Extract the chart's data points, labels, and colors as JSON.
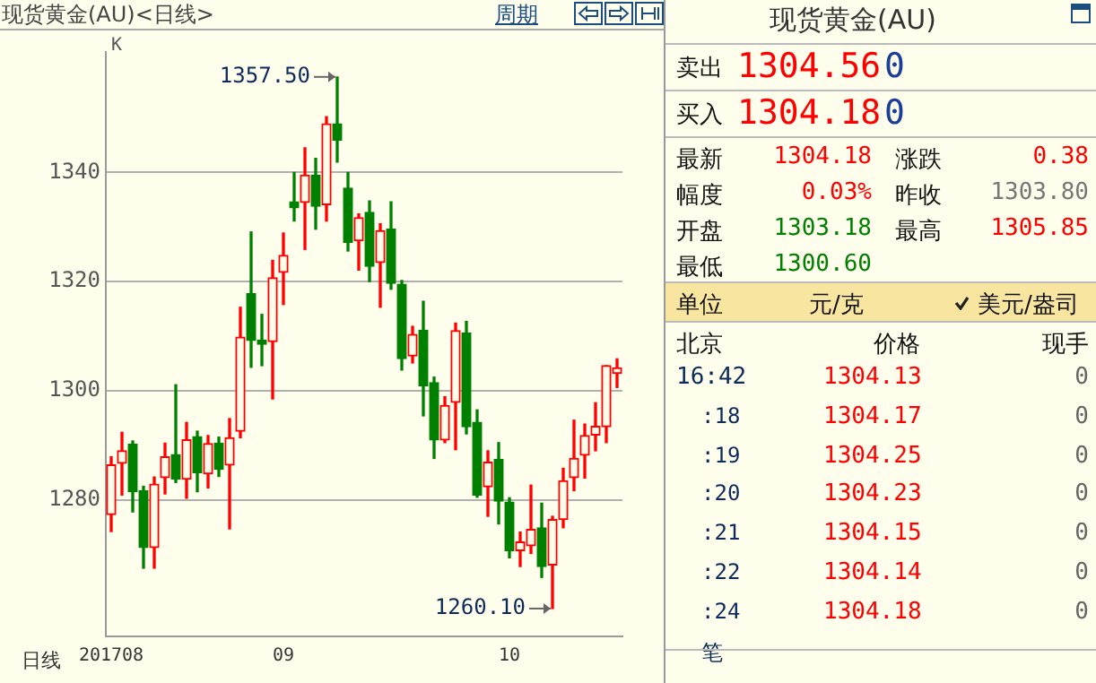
{
  "chart_data": [
    {
      "type": "candlestick",
      "title": "现货黄金(AU)<日线>",
      "categories": [
        "201708",
        null,
        null,
        null,
        null,
        null,
        null,
        null,
        null,
        null,
        null,
        null,
        null,
        null,
        null,
        null,
        "09",
        null,
        null,
        null,
        null,
        null,
        null,
        null,
        null,
        null,
        null,
        null,
        null,
        null,
        null,
        null,
        null,
        null,
        null,
        null,
        null,
        "10",
        null,
        null,
        null,
        null,
        null,
        null,
        null,
        null,
        null,
        null
      ],
      "ohlc": [
        [
          1277.3,
          1287.9,
          1274.2,
          1286.4
        ],
        [
          1286.7,
          1292.4,
          1280.9,
          1289.0
        ],
        [
          1290.2,
          1290.8,
          1277.8,
          1281.5
        ],
        [
          1281.7,
          1282.5,
          1267.5,
          1271.3
        ],
        [
          1271.3,
          1284.2,
          1267.5,
          1282.9
        ],
        [
          1284.1,
          1290.4,
          1281.1,
          1287.9
        ],
        [
          1288.3,
          1301.1,
          1283.2,
          1283.8
        ],
        [
          1283.8,
          1294.2,
          1280.3,
          1291.0
        ],
        [
          1291.6,
          1292.6,
          1281.5,
          1285.0
        ],
        [
          1284.8,
          1291.8,
          1282.2,
          1290.3
        ],
        [
          1290.4,
          1291.5,
          1284.3,
          1285.6
        ],
        [
          1286.4,
          1294.9,
          1274.7,
          1291.4
        ],
        [
          1292.6,
          1315.3,
          1291.4,
          1309.8
        ],
        [
          1317.8,
          1329.1,
          1304.3,
          1309.2
        ],
        [
          1309.3,
          1314.0,
          1304.6,
          1308.5
        ],
        [
          1309.0,
          1323.9,
          1298.5,
          1320.7
        ],
        [
          1321.7,
          1328.9,
          1315.8,
          1324.8
        ],
        [
          1334.6,
          1340.0,
          1331.1,
          1333.5
        ],
        [
          1334.5,
          1344.5,
          1325.9,
          1339.5
        ],
        [
          1339.5,
          1342.6,
          1329.6,
          1333.8
        ],
        [
          1334.1,
          1350.2,
          1331.1,
          1348.9
        ],
        [
          1348.9,
          1357.5,
          1341.9,
          1345.9
        ],
        [
          1337.1,
          1340.0,
          1325.6,
          1327.2
        ],
        [
          1327.5,
          1332.4,
          1322.1,
          1331.7
        ],
        [
          1332.7,
          1334.8,
          1320.0,
          1322.8
        ],
        [
          1323.5,
          1330.6,
          1315.3,
          1329.3
        ],
        [
          1329.6,
          1334.6,
          1318.6,
          1319.7
        ],
        [
          1319.5,
          1320.2,
          1303.8,
          1305.9
        ],
        [
          1306.4,
          1311.8,
          1305.1,
          1310.3
        ],
        [
          1311.1,
          1316.4,
          1295.4,
          1300.9
        ],
        [
          1301.5,
          1302.5,
          1287.6,
          1291.0
        ],
        [
          1291.0,
          1298.9,
          1290.5,
          1297.3
        ],
        [
          1297.9,
          1312.4,
          1289.2,
          1311.0
        ],
        [
          1310.6,
          1312.7,
          1292.1,
          1293.4
        ],
        [
          1294.2,
          1296.5,
          1280.5,
          1280.9
        ],
        [
          1282.4,
          1289.0,
          1277.0,
          1286.9
        ],
        [
          1287.4,
          1290.5,
          1275.6,
          1279.8
        ],
        [
          1279.6,
          1280.4,
          1269.4,
          1270.7
        ],
        [
          1270.7,
          1274.1,
          1267.8,
          1272.3
        ],
        [
          1271.6,
          1282.7,
          1270.2,
          1274.6
        ],
        [
          1274.9,
          1279.4,
          1265.8,
          1267.8
        ],
        [
          1268.1,
          1277.0,
          1260.1,
          1276.4
        ],
        [
          1276.4,
          1285.8,
          1274.9,
          1283.5
        ],
        [
          1284.1,
          1294.6,
          1281.7,
          1287.6
        ],
        [
          1288.2,
          1293.9,
          1284.0,
          1291.8
        ],
        [
          1291.9,
          1297.8,
          1289.0,
          1293.5
        ],
        [
          1293.4,
          1304.6,
          1290.5,
          1304.6
        ],
        [
          1303.18,
          1305.85,
          1300.6,
          1304.18
        ]
      ],
      "colors": [
        "#ff0000",
        "#ff0000",
        "#008000",
        "#008000",
        "#ff0000",
        "#ff0000",
        "#008000",
        "#ff0000",
        "#008000",
        "#ff0000",
        "#008000",
        "#ff0000",
        "#ff0000",
        "#008000",
        "#008000",
        "#ff0000",
        "#ff0000",
        "#008000",
        "#ff0000",
        "#008000",
        "#ff0000",
        "#008000",
        "#008000",
        "#ff0000",
        "#008000",
        "#ff0000",
        "#008000",
        "#008000",
        "#ff0000",
        "#008000",
        "#008000",
        "#ff0000",
        "#ff0000",
        "#008000",
        "#008000",
        "#ff0000",
        "#008000",
        "#008000",
        "#ff0000",
        "#ff0000",
        "#008000",
        "#ff0000",
        "#ff0000",
        "#ff0000",
        "#ff0000",
        "#ff0000",
        "#ff0000",
        "#ff0000"
      ],
      "ylim": [
        1255,
        1362
      ],
      "yticks": [
        1280,
        1300,
        1320,
        1340
      ],
      "grid": "y",
      "annotations": [
        "1357.50",
        "1260.10",
        "K",
        "周期",
        "日线"
      ]
    },
    {
      "type": "other",
      "title": "现货黄金(AU)",
      "annotations": [
        "卖出",
        "1304.56",
        "0",
        "买入",
        "1304.18",
        "0",
        "最新",
        "1304.18",
        "涨跌",
        "0.38",
        "幅度",
        "0.03%",
        "昨收",
        "1303.80",
        "开盘",
        "1303.18",
        "最高",
        "1305.85",
        "最低",
        "1300.60",
        "单位",
        "元/克",
        "美元/盎司",
        "北京",
        "价格",
        "现手",
        "16:42",
        "1304.13",
        "0",
        ":18",
        "1304.17",
        "0",
        ":19",
        "1304.25",
        "0",
        ":20",
        "1304.23",
        "0",
        ":21",
        "1304.15",
        "0",
        ":22",
        "1304.14",
        "0",
        ":24",
        "1304.18",
        "0",
        "笔"
      ]
    }
  ]
}
